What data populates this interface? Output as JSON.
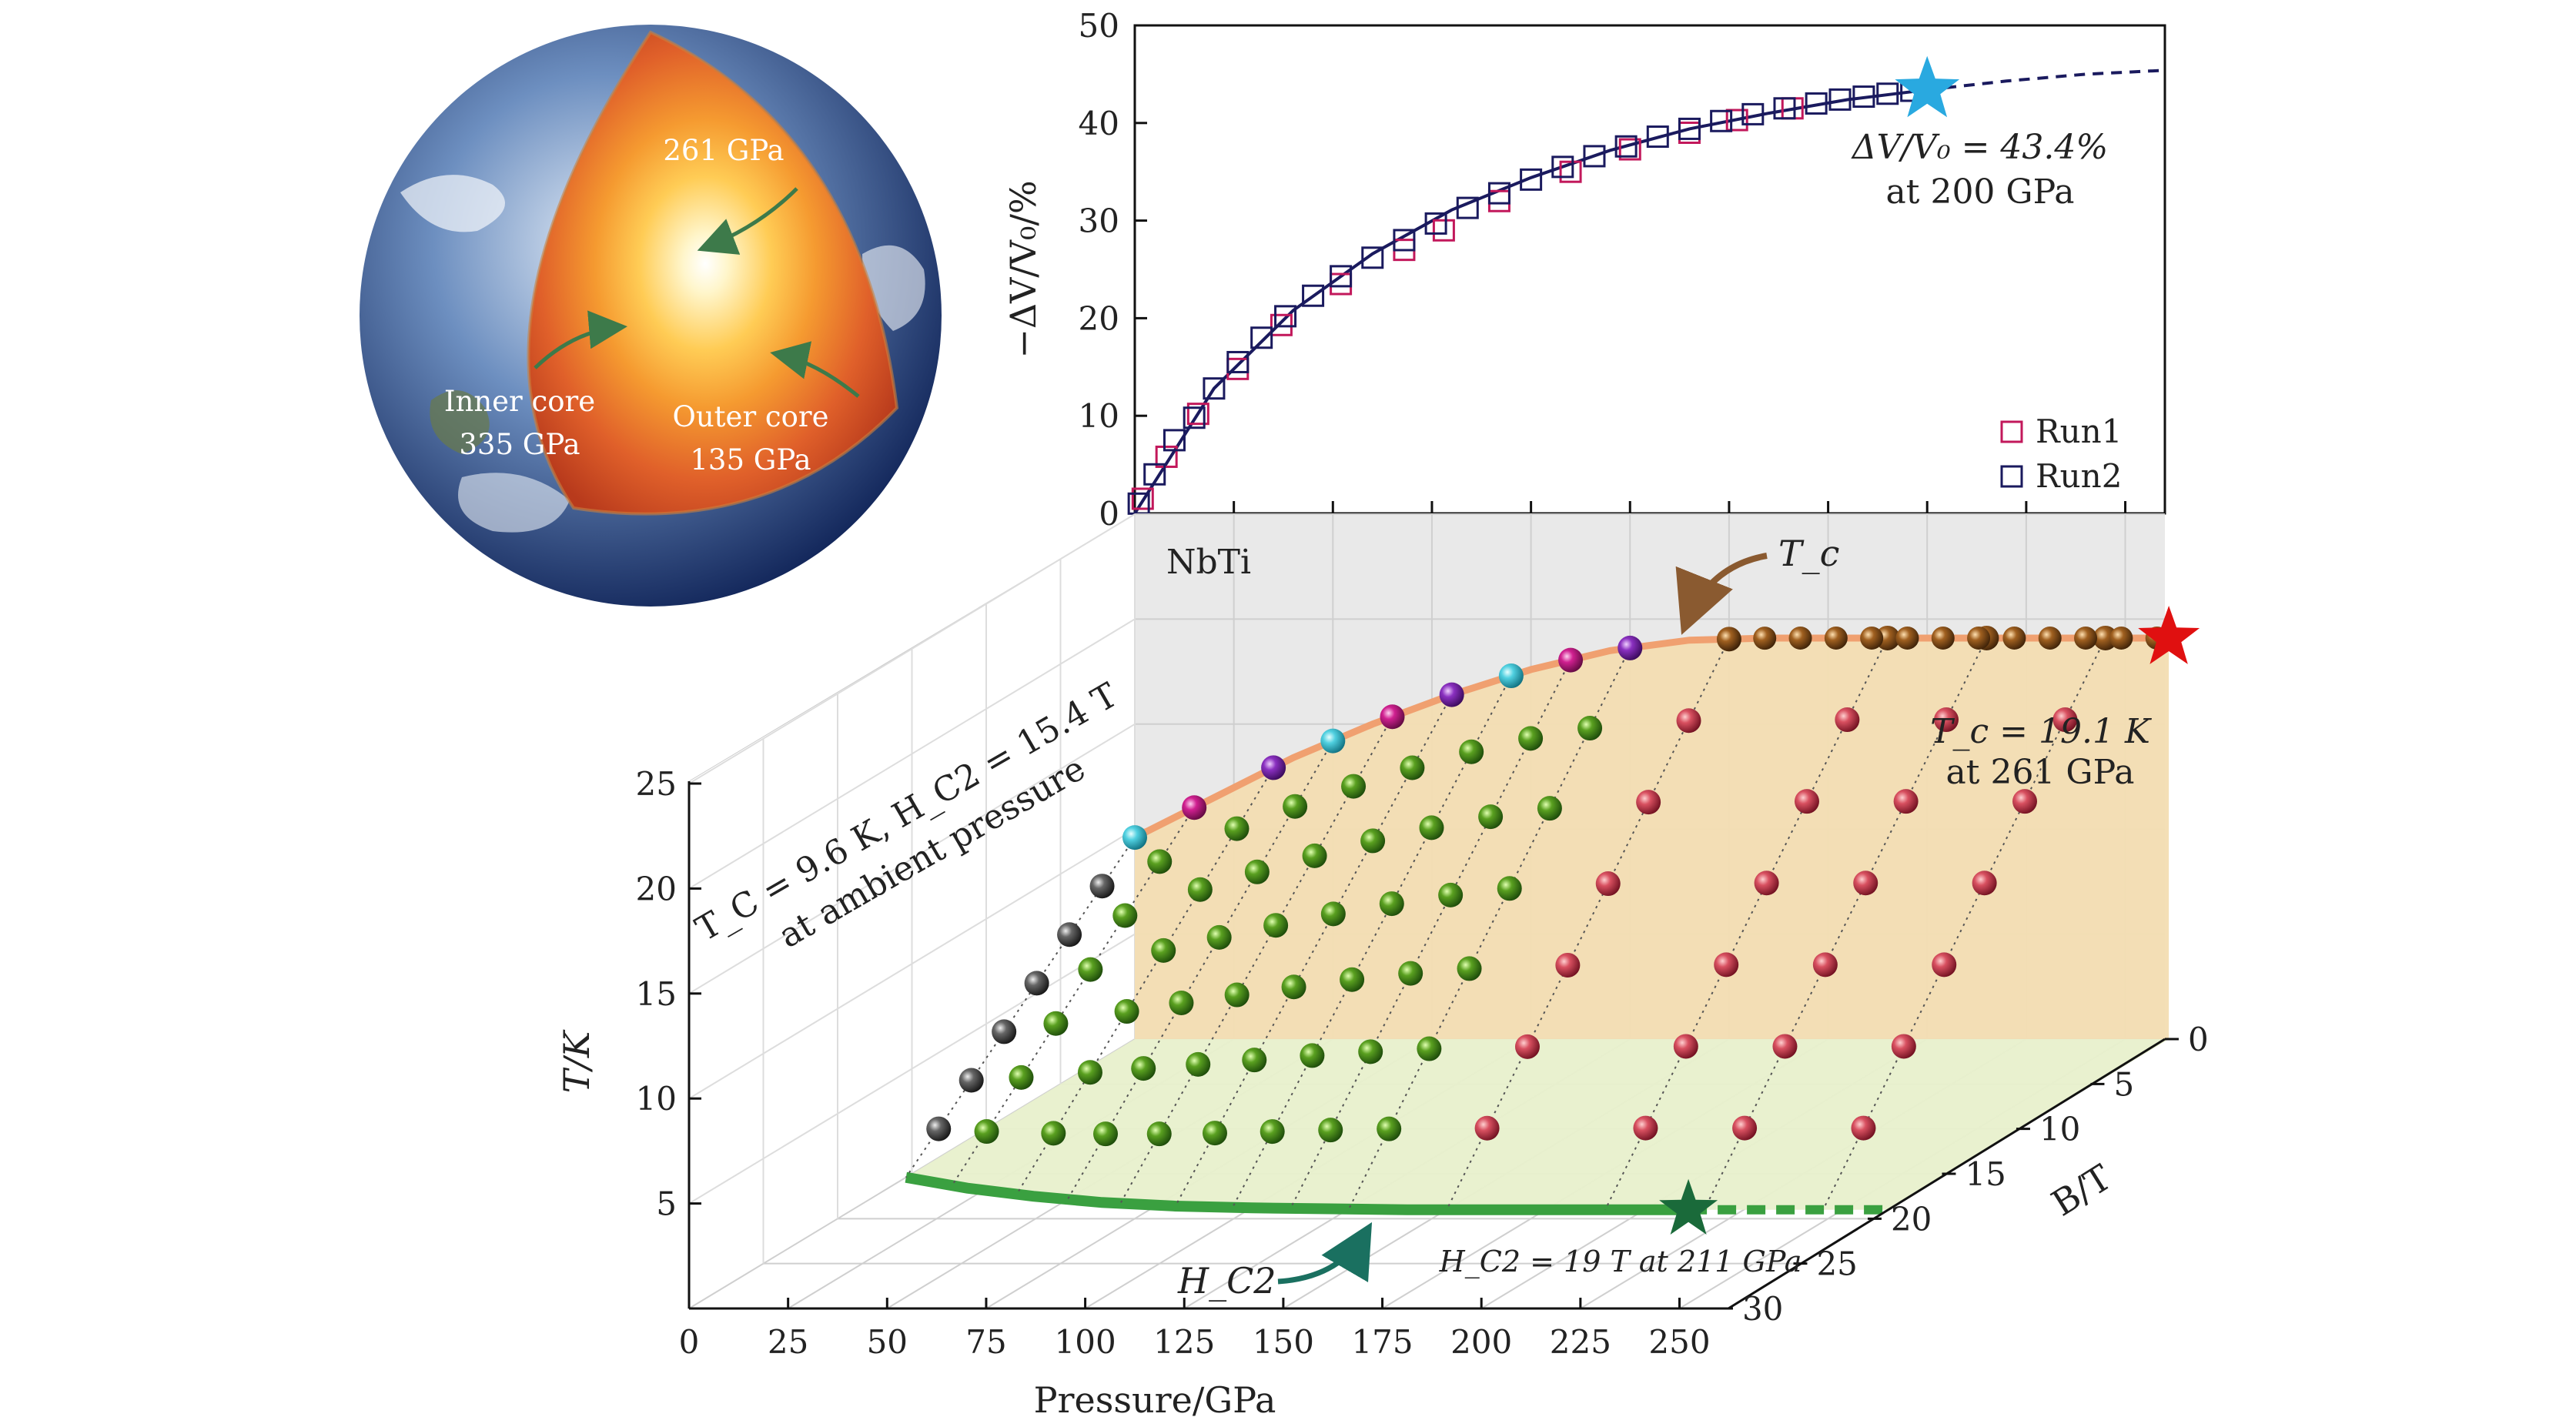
{
  "colors": {
    "run1": "#c2185b",
    "run2": "#1a1a5e",
    "cyan_star": "#29a9e0",
    "red_star": "#e01010",
    "green_star": "#1a6a3a",
    "tc_line": "#f0a070",
    "hc2_line": "#3aa040",
    "wall_gray": "#e9e9e9",
    "wall_tan": "#f3ddb2",
    "floor_green": "#e8f0cc",
    "brown_arrow": "#8a5a30",
    "teal_text": "#2a8a70"
  },
  "inset_globe": {
    "labels": {
      "center": "261 GPa",
      "inner": "Inner core",
      "inner_p": "335 GPa",
      "outer": "Outer core",
      "outer_p": "135 GPa"
    }
  },
  "chart_data": [
    {
      "type": "scatter",
      "title": "",
      "xlabel": "",
      "ylabel": "−ΔV/V₀/%",
      "xlim": [
        0,
        260
      ],
      "ylim": [
        0,
        50
      ],
      "y_ticks": [
        "0",
        "10",
        "20",
        "30",
        "40",
        "50"
      ],
      "legend": {
        "position": "bottom-right",
        "entries": [
          "Run1",
          "Run2"
        ]
      },
      "annotation": {
        "line1": "ΔV/V₀ = 43.4%",
        "line2": "at 200 GPa"
      },
      "series": [
        {
          "name": "Run1",
          "x": [
            2,
            8,
            16,
            26,
            37,
            52,
            68,
            78,
            92,
            110,
            125,
            140,
            152,
            166
          ],
          "y": [
            1.5,
            5.8,
            10.2,
            14.8,
            19.3,
            23.5,
            27,
            29,
            32,
            35,
            37.3,
            39,
            40.3,
            41.5
          ]
        },
        {
          "name": "Run2",
          "x": [
            1,
            5,
            10,
            15,
            20,
            26,
            32,
            38,
            45,
            52,
            60,
            68,
            76,
            84,
            92,
            100,
            108,
            116,
            124,
            132,
            140,
            148,
            156,
            164,
            172,
            178,
            184,
            190,
            196
          ],
          "y": [
            1,
            4,
            7.5,
            9.8,
            12.8,
            15.5,
            18,
            20.2,
            22.3,
            24.3,
            26.2,
            28,
            29.7,
            31.3,
            32.8,
            34.2,
            35.5,
            36.6,
            37.6,
            38.6,
            39.4,
            40.2,
            40.9,
            41.5,
            42,
            42.4,
            42.7,
            43,
            43.3
          ]
        },
        {
          "name": "fit",
          "x": [
            0,
            20,
            40,
            60,
            80,
            100,
            120,
            140,
            160,
            180,
            200,
            220,
            240,
            260
          ],
          "y": [
            0,
            12.8,
            20.8,
            26.6,
            31.1,
            34.4,
            37.2,
            39.4,
            41,
            42.4,
            43.4,
            44.3,
            45,
            45.4
          ]
        }
      ],
      "highlight": {
        "x": 200,
        "y": 43.4
      }
    },
    {
      "type": "scatter3d",
      "title": "NbTi",
      "xlabel": "Pressure/GPa",
      "ylabel": "B/T",
      "zlabel": "T/K",
      "xlim": [
        0,
        260
      ],
      "ylim": [
        0,
        30
      ],
      "zlim": [
        0,
        25
      ],
      "x_ticks": [
        "0",
        "25",
        "50",
        "75",
        "100",
        "125",
        "150",
        "175",
        "200",
        "225",
        "250"
      ],
      "y_ticks": [
        "0",
        "5",
        "10",
        "15",
        "20",
        "25",
        "30"
      ],
      "z_ticks": [
        "5",
        "10",
        "15",
        "20",
        "25"
      ],
      "tc_curve": {
        "pressure": [
          0,
          20,
          40,
          60,
          80,
          100,
          120,
          140,
          160,
          180,
          200,
          220,
          240,
          261
        ],
        "tc": [
          9.6,
          11.5,
          13.4,
          15,
          16.4,
          17.6,
          18.5,
          19,
          19.1,
          19.1,
          19.1,
          19.1,
          19.1,
          19.1
        ]
      },
      "hc2_curve": {
        "pressure": [
          0,
          20,
          40,
          60,
          80,
          100,
          120,
          140,
          160,
          180,
          200,
          211,
          230,
          261
        ],
        "hc2": [
          15.4,
          16.6,
          17.5,
          18.2,
          18.6,
          18.8,
          18.9,
          19,
          19,
          19,
          19,
          19,
          19,
          19
        ]
      },
      "measurement_pressures": [
        0,
        15,
        35,
        50,
        65,
        80,
        95,
        110,
        125,
        150,
        190,
        215,
        245
      ],
      "annotations": {
        "ambient_line1": "T_C = 9.6 K, H_C2 = 15.4 T",
        "ambient_line2": "at ambient pressure",
        "tc_label": "T_c",
        "tc_value_line1": "T_c = 19.1 K",
        "tc_value_line2": "at 261 GPa",
        "hc2_label": "H_C2",
        "hc2_value": "H_C2 = 19 T at 211 GPa"
      }
    }
  ]
}
